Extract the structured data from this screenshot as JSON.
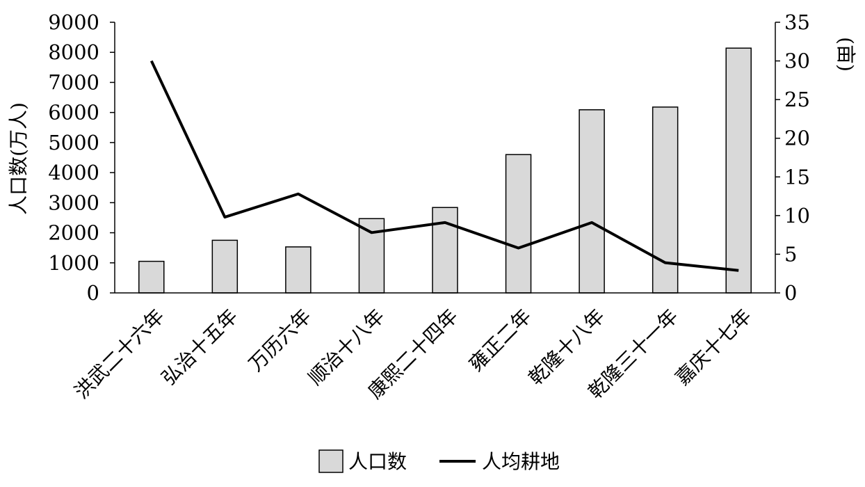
{
  "chart_data": {
    "type": "bar",
    "categories": [
      "洪武二十六年",
      "弘治十五年",
      "万历六年",
      "顺治十八年",
      "康熙二十四年",
      "雍正二年",
      "乾隆十八年",
      "乾隆三十一年",
      "嘉庆十七年"
    ],
    "series": [
      {
        "name": "人口数",
        "type": "bar",
        "axis": "left",
        "values": [
          1050,
          1750,
          1530,
          2470,
          2840,
          4600,
          6090,
          6180,
          8140
        ]
      },
      {
        "name": "人均耕地",
        "type": "line",
        "axis": "right",
        "values": [
          30.0,
          9.8,
          12.8,
          7.8,
          9.1,
          5.8,
          9.1,
          3.9,
          2.9
        ]
      }
    ],
    "ylabel": "人口数(万人)",
    "y2label": "(亩)",
    "ylim": [
      0,
      9000
    ],
    "yticks": [
      "0",
      "1000",
      "2000",
      "3000",
      "4000",
      "5000",
      "6000",
      "7000",
      "8000",
      "9000"
    ],
    "y2lim": [
      0,
      35
    ],
    "y2ticks": [
      "0",
      "5",
      "10",
      "15",
      "20",
      "25",
      "30",
      "35"
    ],
    "legend_position": "bottom",
    "bar_color": "#d9d9d9",
    "line_color": "#000000",
    "grid": false
  }
}
